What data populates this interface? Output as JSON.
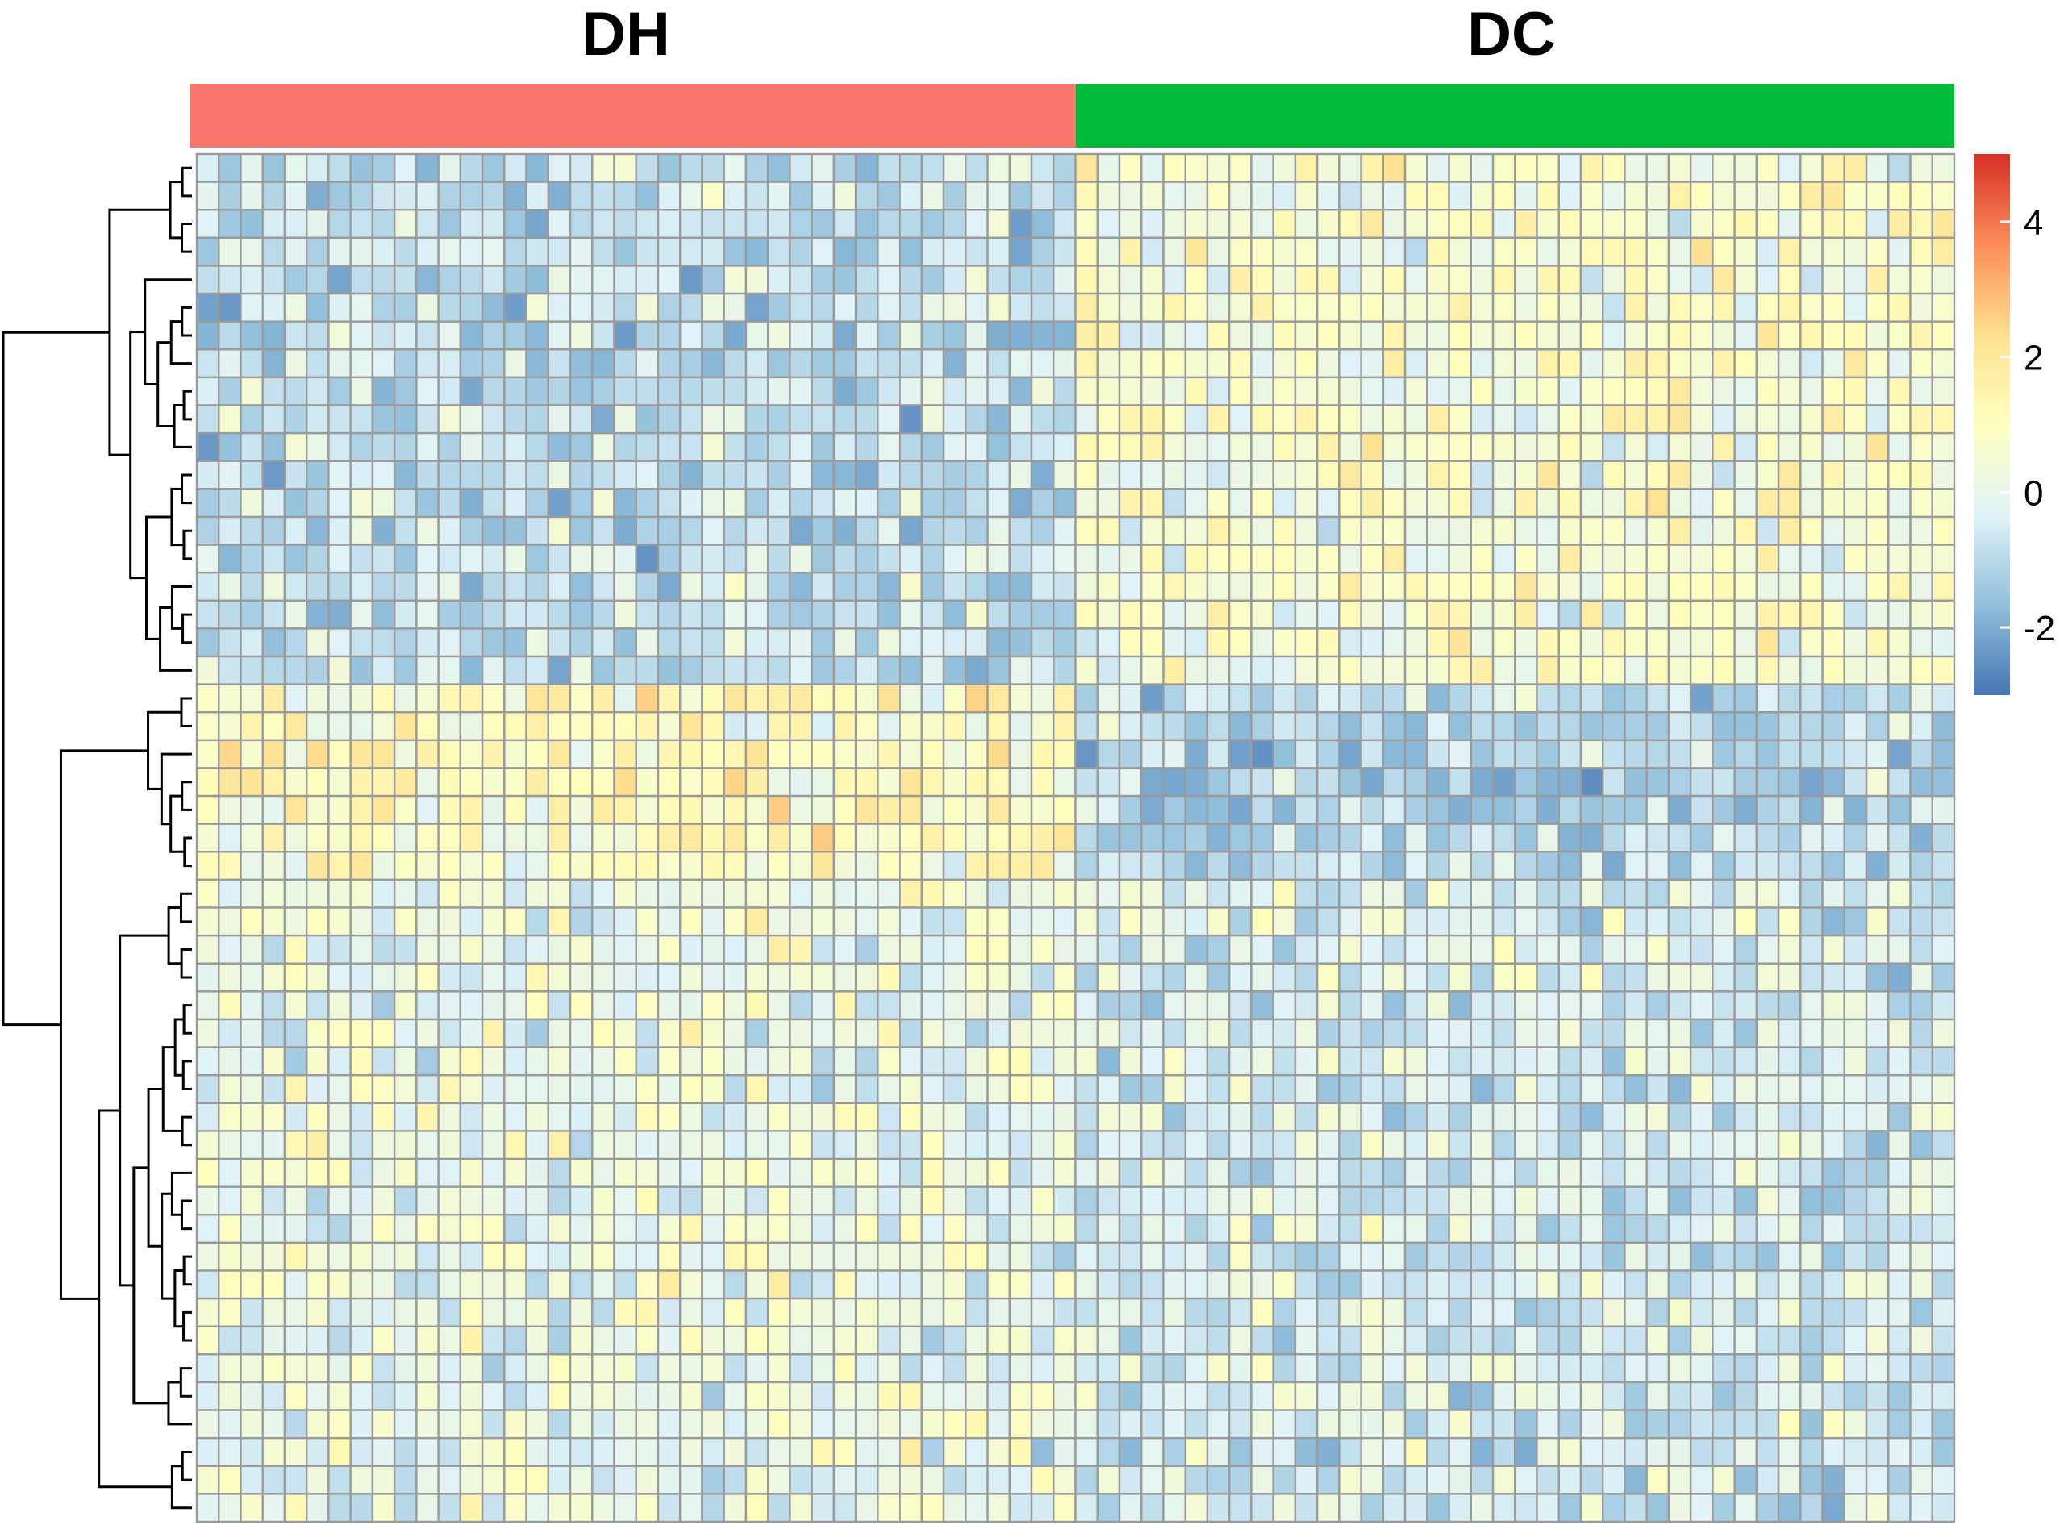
{
  "chart_data": {
    "type": "heatmap",
    "title": "",
    "xlabel": "",
    "ylabel": "",
    "n_rows": 49,
    "groups": [
      {
        "name": "DH",
        "color": "#F8766D",
        "n_columns": 40
      },
      {
        "name": "DC",
        "color": "#00BA38",
        "n_columns": 40
      }
    ],
    "colorbar": {
      "min": -3,
      "max": 5,
      "ticks": [
        -2,
        0,
        2,
        4
      ],
      "tick_labels": [
        "-2",
        "0",
        "2",
        "4"
      ],
      "colors": [
        "#4575B4",
        "#91BFDB",
        "#E0F3F8",
        "#FFFFBF",
        "#FEE090",
        "#FC8D59",
        "#D73027"
      ]
    },
    "row_blocks": [
      {
        "rows": [
          0,
          18
        ],
        "DH_mean": -0.8,
        "DC_mean": 0.6
      },
      {
        "rows": [
          19,
          25
        ],
        "DH_mean": 1.0,
        "DC_mean": -1.0
      },
      {
        "rows": [
          26,
          45
        ],
        "DH_mean": 0.1,
        "DC_mean": -0.4
      },
      {
        "rows": [
          46,
          48
        ],
        "DH_mean": 0.0,
        "DC_mean": -0.6
      }
    ],
    "dendrogram": "row-clustered",
    "legend_position": "right"
  }
}
